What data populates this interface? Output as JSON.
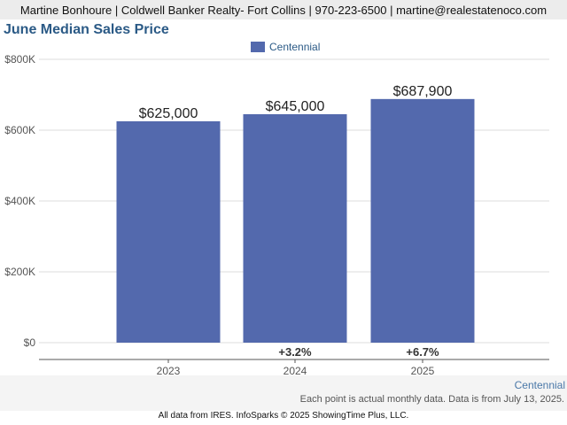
{
  "header": {
    "contact_line": "Martine Bonhoure | Coldwell Banker Realty- Fort Collins | 970-223-6500 | martine@realestatenoco.com"
  },
  "chart_data": {
    "type": "bar",
    "title": "June Median Sales Price",
    "categories": [
      "2023",
      "2024",
      "2025"
    ],
    "series": [
      {
        "name": "Centennial",
        "values": [
          625000,
          645000,
          687900
        ]
      }
    ],
    "value_labels": [
      "$625,000",
      "$645,000",
      "$687,900"
    ],
    "change_labels": [
      "",
      "+3.2%",
      "+6.7%"
    ],
    "y_ticks": [
      0,
      200000,
      400000,
      600000,
      800000
    ],
    "y_tick_labels": [
      "$0",
      "$200K",
      "$400K",
      "$600K",
      "$800K"
    ],
    "ylim": [
      0,
      800000
    ],
    "xlabel": "",
    "ylabel": "",
    "grid": true,
    "legend_position": "top-center",
    "bar_color": "#5369ad"
  },
  "footer": {
    "region": "Centennial",
    "note": "Each point is actual monthly data. Data is from July 13, 2025.",
    "credit": "All data from IRES. InfoSparks © 2025 ShowingTime Plus, LLC."
  }
}
